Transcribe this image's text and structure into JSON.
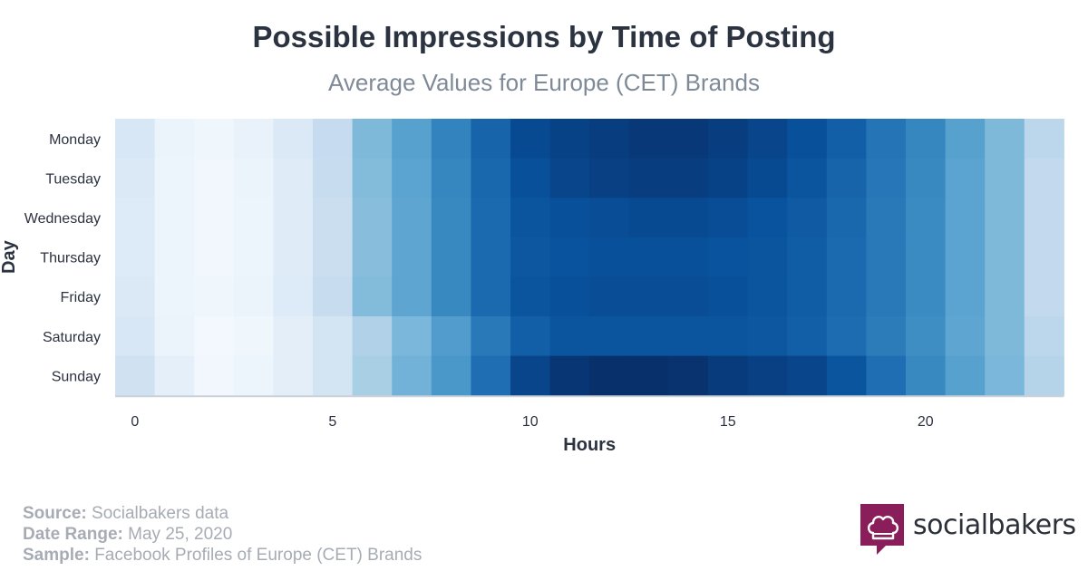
{
  "header": {
    "title": "Possible Impressions by Time of Posting",
    "subtitle": "Average Values for Europe (CET) Brands"
  },
  "footer": {
    "source_key": "Source:",
    "source_val": "Socialbakers data",
    "range_key": "Date Range:",
    "range_val": "May 25, 2020",
    "sample_key": "Sample:",
    "sample_val": "Facebook Profiles of Europe (CET) Brands"
  },
  "brand": {
    "name": "socialbakers",
    "color": "#8a1e5a"
  },
  "chart_data": {
    "type": "heatmap",
    "title": "Possible Impressions by Time of Posting",
    "subtitle": "Average Values for Europe (CET) Brands",
    "xlabel": "Hours",
    "ylabel": "Day",
    "x": [
      0,
      1,
      2,
      3,
      4,
      5,
      6,
      7,
      8,
      9,
      10,
      11,
      12,
      13,
      14,
      15,
      16,
      17,
      18,
      19,
      20,
      21,
      22,
      23
    ],
    "x_ticks": [
      0,
      5,
      10,
      15,
      20
    ],
    "y": [
      "Monday",
      "Tuesday",
      "Wednesday",
      "Thursday",
      "Friday",
      "Saturday",
      "Sunday"
    ],
    "color_scale": [
      "#f7fbff",
      "#08306b"
    ],
    "values_relative": [
      [
        0.16,
        0.06,
        0.04,
        0.07,
        0.14,
        0.25,
        0.45,
        0.56,
        0.68,
        0.8,
        0.9,
        0.93,
        0.95,
        0.97,
        0.97,
        0.95,
        0.92,
        0.88,
        0.82,
        0.74,
        0.67,
        0.56,
        0.45,
        0.28
      ],
      [
        0.14,
        0.05,
        0.03,
        0.06,
        0.12,
        0.24,
        0.44,
        0.55,
        0.67,
        0.79,
        0.88,
        0.92,
        0.94,
        0.95,
        0.95,
        0.93,
        0.9,
        0.86,
        0.8,
        0.73,
        0.66,
        0.55,
        0.45,
        0.26
      ],
      [
        0.13,
        0.05,
        0.03,
        0.05,
        0.12,
        0.23,
        0.43,
        0.54,
        0.66,
        0.78,
        0.86,
        0.88,
        0.89,
        0.9,
        0.9,
        0.89,
        0.87,
        0.84,
        0.79,
        0.72,
        0.65,
        0.55,
        0.45,
        0.26
      ],
      [
        0.13,
        0.05,
        0.03,
        0.05,
        0.12,
        0.23,
        0.43,
        0.54,
        0.66,
        0.78,
        0.85,
        0.87,
        0.88,
        0.88,
        0.88,
        0.87,
        0.86,
        0.83,
        0.78,
        0.72,
        0.65,
        0.55,
        0.45,
        0.26
      ],
      [
        0.14,
        0.05,
        0.04,
        0.06,
        0.13,
        0.24,
        0.44,
        0.54,
        0.66,
        0.78,
        0.86,
        0.88,
        0.89,
        0.89,
        0.89,
        0.88,
        0.86,
        0.83,
        0.78,
        0.72,
        0.65,
        0.55,
        0.45,
        0.26
      ],
      [
        0.16,
        0.06,
        0.02,
        0.04,
        0.1,
        0.18,
        0.32,
        0.46,
        0.58,
        0.72,
        0.82,
        0.86,
        0.86,
        0.86,
        0.86,
        0.86,
        0.85,
        0.82,
        0.77,
        0.71,
        0.64,
        0.54,
        0.45,
        0.28
      ],
      [
        0.2,
        0.09,
        0.03,
        0.05,
        0.1,
        0.18,
        0.34,
        0.48,
        0.6,
        0.76,
        0.92,
        0.98,
        1.0,
        1.0,
        0.99,
        0.96,
        0.94,
        0.92,
        0.86,
        0.76,
        0.66,
        0.56,
        0.46,
        0.3
      ]
    ]
  }
}
